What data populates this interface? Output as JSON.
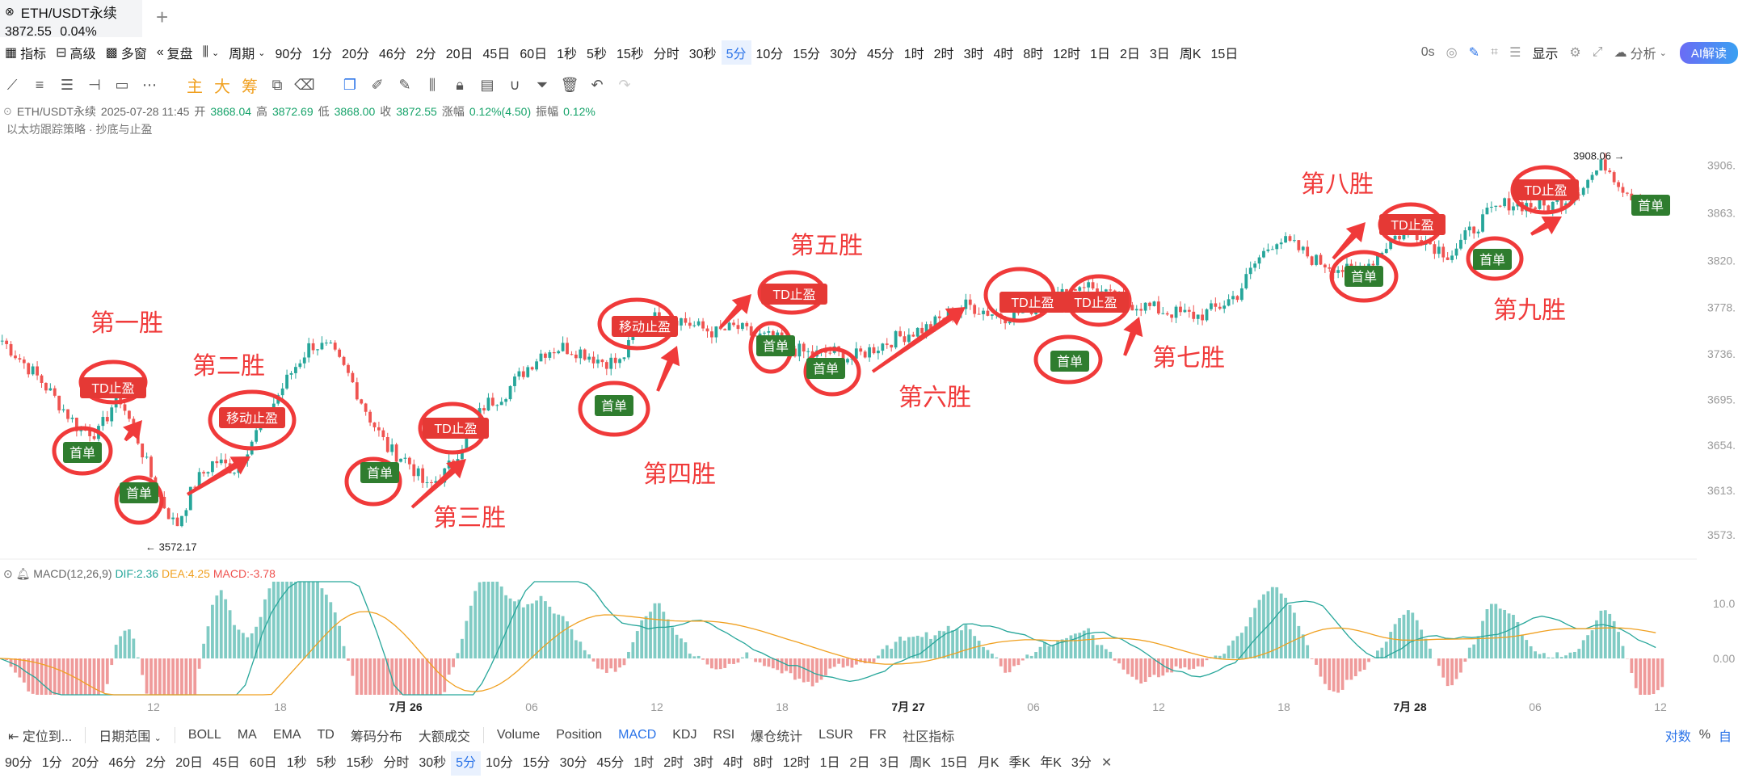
{
  "tab": {
    "icon": "x-circle-icon",
    "symbol": "ETH/USDT永续",
    "price": "3872.55",
    "change": "0.04%",
    "add_icon": "plus-icon"
  },
  "toolbar": {
    "left": [
      {
        "label": "指标",
        "icon": "indicator-icon"
      },
      {
        "label": "高级",
        "icon": "briefcase-icon"
      },
      {
        "label": "多窗",
        "icon": "grid-icon"
      },
      {
        "label": "复盘",
        "icon": "rewind-icon"
      }
    ],
    "chart_type_icon": "candles-icon",
    "period_label": "周期",
    "periods": [
      "90分",
      "1分",
      "20分",
      "46分",
      "2分",
      "20日",
      "45日",
      "60日",
      "1秒",
      "5秒",
      "15秒",
      "分时",
      "30秒",
      "5分",
      "10分",
      "15分",
      "30分",
      "45分",
      "1时",
      "2时",
      "3时",
      "4时",
      "8时",
      "12时",
      "1日",
      "2日",
      "3日",
      "周K",
      "15日"
    ],
    "active_period": "5分",
    "right": {
      "countdown": "0s",
      "display": "显示",
      "analysis": "分析",
      "ai": "AI解读"
    }
  },
  "draw_tools": {
    "main": "主",
    "big": "大",
    "chip": "筹"
  },
  "info": {
    "symbol": "ETH/USDT永续",
    "datetime": "2025-07-28 11:45",
    "open_label": "开",
    "open": "3868.04",
    "high_label": "高",
    "high": "3872.69",
    "low_label": "低",
    "low": "3868.00",
    "close_label": "收",
    "close": "3872.55",
    "change_label": "涨幅",
    "change": "0.12%(4.50)",
    "amp_label": "振幅",
    "amp": "0.12%",
    "strategy": "以太坊跟踪策略 · 抄底与止盈"
  },
  "chart_data": {
    "type": "candlestick",
    "price_axis": [
      "3906.",
      "3863.",
      "3820.",
      "3778.",
      "3736.",
      "3695.",
      "3654.",
      "3613.",
      "3573."
    ],
    "time_axis": [
      {
        "label": "12",
        "bold": false
      },
      {
        "label": "18",
        "bold": false
      },
      {
        "label": "7月 26",
        "bold": true
      },
      {
        "label": "06",
        "bold": false
      },
      {
        "label": "12",
        "bold": false
      },
      {
        "label": "18",
        "bold": false
      },
      {
        "label": "7月 27",
        "bold": true
      },
      {
        "label": "06",
        "bold": false
      },
      {
        "label": "12",
        "bold": false
      },
      {
        "label": "18",
        "bold": false
      },
      {
        "label": "7月 28",
        "bold": true
      },
      {
        "label": "06",
        "bold": false
      },
      {
        "label": "12",
        "bold": false
      }
    ],
    "high_marker": "3908.06 →",
    "low_marker": "← 3572.17",
    "macd_axis": [
      "10.0",
      "0.00"
    ],
    "macd_params": "MACD(12,26,9)",
    "dif": "DIF:2.36",
    "dea": "DEA:4.25",
    "macd": "MACD:-3.78",
    "price_path": [
      3748,
      3730,
      3712,
      3690,
      3668,
      3665,
      3700,
      3660,
      3612,
      3580,
      3620,
      3640,
      3632,
      3660,
      3690,
      3720,
      3745,
      3740,
      3715,
      3680,
      3650,
      3640,
      3615,
      3630,
      3660,
      3690,
      3700,
      3720,
      3738,
      3742,
      3738,
      3730,
      3728,
      3760,
      3770,
      3768,
      3760,
      3755,
      3760,
      3752,
      3750,
      3740,
      3735,
      3738,
      3732,
      3740,
      3748,
      3755,
      3760,
      3772,
      3780,
      3774,
      3770,
      3775,
      3782,
      3790,
      3800,
      3790,
      3782,
      3780,
      3775,
      3772,
      3770,
      3778,
      3790,
      3820,
      3840,
      3832,
      3820,
      3815,
      3808,
      3820,
      3840,
      3848,
      3835,
      3825,
      3845,
      3862,
      3872,
      3870,
      3868,
      3875,
      3890,
      3908,
      3885,
      3872,
      3868
    ],
    "win_labels": [
      "第一胜",
      "第二胜",
      "第三胜",
      "第四胜",
      "第五胜",
      "第六胜",
      "第七胜",
      "第八胜",
      "第九胜"
    ],
    "badges": {
      "first": "首单",
      "td": "TD止盈",
      "move": "移动止盈"
    }
  },
  "bottombar": {
    "locate": "定位到...",
    "range": "日期范围",
    "items": [
      "BOLL",
      "MA",
      "EMA",
      "TD",
      "筹码分布",
      "大额成交",
      "Volume",
      "Position",
      "MACD",
      "KDJ",
      "RSI",
      "爆仓统计",
      "LSUR",
      "FR",
      "社区指标"
    ],
    "active": "MACD",
    "right_log": "对数",
    "right_pct": "%",
    "right_auto": "自"
  },
  "periodbar": {
    "items": [
      "90分",
      "1分",
      "20分",
      "46分",
      "2分",
      "20日",
      "45日",
      "60日",
      "1秒",
      "5秒",
      "15秒",
      "分时",
      "30秒",
      "5分",
      "10分",
      "15分",
      "30分",
      "45分",
      "1时",
      "2时",
      "3时",
      "4时",
      "8时",
      "12时",
      "1日",
      "2日",
      "3日",
      "周K",
      "15日",
      "月K",
      "季K",
      "年K",
      "3分"
    ],
    "active": "5分",
    "close_icon": "close-icon"
  },
  "colors": {
    "up": "#26a69a",
    "down": "#ef5350",
    "annot": "#f03a3a",
    "badge_green": "#2f7d2f",
    "badge_red": "#e53935",
    "accent": "#2a73e8"
  }
}
